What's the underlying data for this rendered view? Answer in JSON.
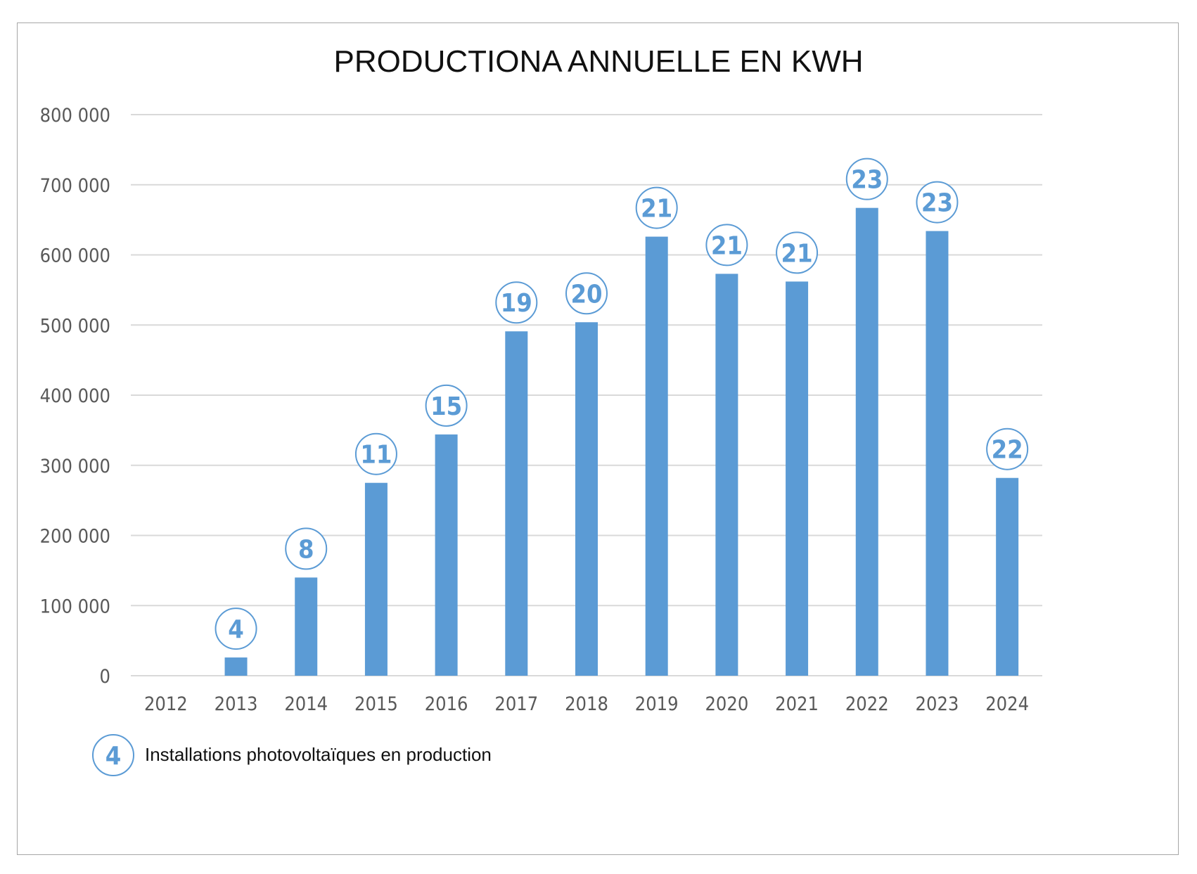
{
  "chart_data": {
    "type": "bar",
    "title": "PRODUCTIONA ANNUELLE EN KWH",
    "categories": [
      "2012",
      "2013",
      "2014",
      "2015",
      "2016",
      "2017",
      "2018",
      "2019",
      "2020",
      "2021",
      "2022",
      "2023",
      "2024"
    ],
    "series": [
      {
        "values": [
          0,
          26000,
          140000,
          275000,
          344000,
          491000,
          504000,
          626000,
          573000,
          562000,
          667000,
          634000,
          282000
        ],
        "color": "#5b9bd5"
      }
    ],
    "installations": [
      null,
      4,
      8,
      11,
      15,
      19,
      20,
      21,
      21,
      21,
      23,
      23,
      22
    ],
    "ylim": [
      0,
      800000
    ],
    "yticks": [
      0,
      100000,
      200000,
      300000,
      400000,
      500000,
      600000,
      700000,
      800000
    ],
    "ytick_labels": [
      "0",
      "100 000",
      "200 000",
      "300 000",
      "400 000",
      "500 000",
      "600 000",
      "700 000",
      "800 000"
    ],
    "grid": true,
    "legend": {
      "position": "bottom-left",
      "sample": "4",
      "label": "Installations photovoltaïques en production"
    },
    "colors": {
      "bar": "#5b9bd5",
      "badge": "#5b9bd5",
      "grid": "#d9d9d9",
      "tick_text": "#595959"
    }
  }
}
